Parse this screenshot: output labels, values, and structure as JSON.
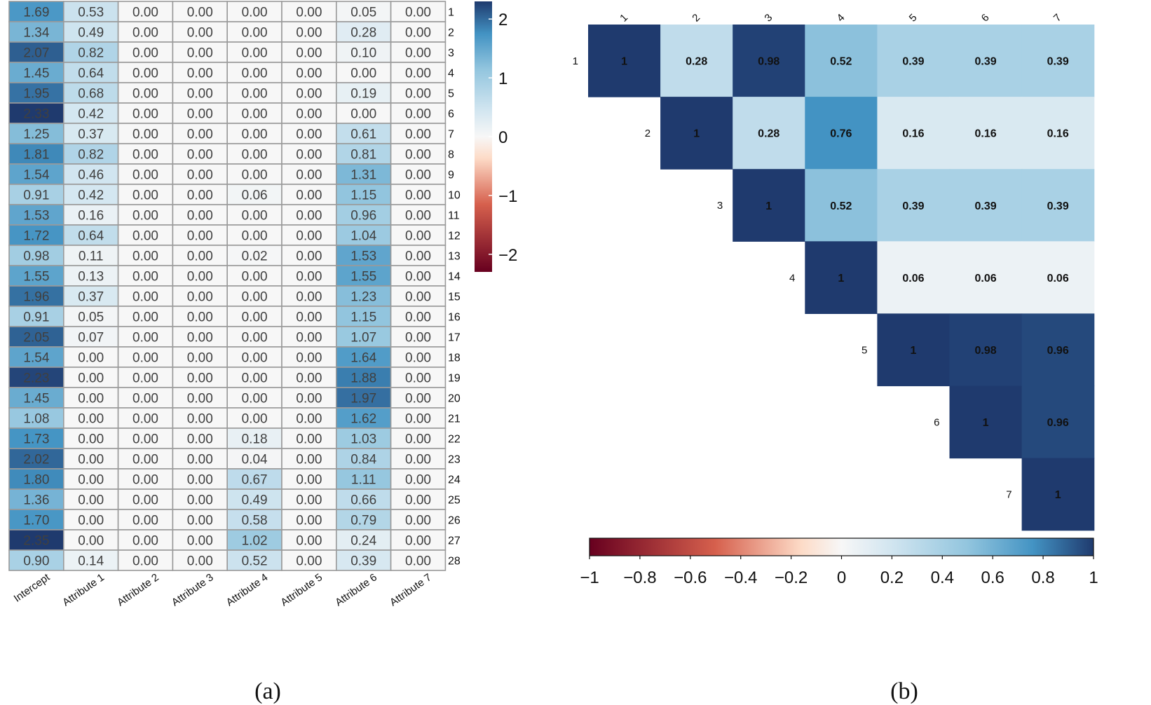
{
  "chart_data": [
    {
      "type": "heatmap",
      "panel_label": "(a)",
      "columns": [
        "Intercept",
        "Attribute 1",
        "Attribute 2",
        "Attribute 3",
        "Attribute 4",
        "Attribute 5",
        "Attribute 6",
        "Attribute 7"
      ],
      "rows": [
        "1",
        "2",
        "3",
        "4",
        "5",
        "6",
        "7",
        "8",
        "9",
        "10",
        "11",
        "12",
        "13",
        "14",
        "15",
        "16",
        "17",
        "18",
        "19",
        "20",
        "21",
        "22",
        "23",
        "24",
        "25",
        "26",
        "27",
        "28"
      ],
      "values": [
        [
          "1.69",
          "0.53",
          "0.00",
          "0.00",
          "0.00",
          "0.00",
          "0.05",
          "0.00"
        ],
        [
          "1.34",
          "0.49",
          "0.00",
          "0.00",
          "0.00",
          "0.00",
          "0.28",
          "0.00"
        ],
        [
          "2.07",
          "0.82",
          "0.00",
          "0.00",
          "0.00",
          "0.00",
          "0.10",
          "0.00"
        ],
        [
          "1.45",
          "0.64",
          "0.00",
          "0.00",
          "0.00",
          "0.00",
          "0.00",
          "0.00"
        ],
        [
          "1.95",
          "0.68",
          "0.00",
          "0.00",
          "0.00",
          "0.00",
          "0.19",
          "0.00"
        ],
        [
          "2.33",
          "0.42",
          "0.00",
          "0.00",
          "0.00",
          "0.00",
          "0.00",
          "0.00"
        ],
        [
          "1.25",
          "0.37",
          "0.00",
          "0.00",
          "0.00",
          "0.00",
          "0.61",
          "0.00"
        ],
        [
          "1.81",
          "0.82",
          "0.00",
          "0.00",
          "0.00",
          "0.00",
          "0.81",
          "0.00"
        ],
        [
          "1.54",
          "0.46",
          "0.00",
          "0.00",
          "0.00",
          "0.00",
          "1.31",
          "0.00"
        ],
        [
          "0.91",
          "0.42",
          "0.00",
          "0.00",
          "0.06",
          "0.00",
          "1.15",
          "0.00"
        ],
        [
          "1.53",
          "0.16",
          "0.00",
          "0.00",
          "0.00",
          "0.00",
          "0.96",
          "0.00"
        ],
        [
          "1.72",
          "0.64",
          "0.00",
          "0.00",
          "0.00",
          "0.00",
          "1.04",
          "0.00"
        ],
        [
          "0.98",
          "0.11",
          "0.00",
          "0.00",
          "0.02",
          "0.00",
          "1.53",
          "0.00"
        ],
        [
          "1.55",
          "0.13",
          "0.00",
          "0.00",
          "0.00",
          "0.00",
          "1.55",
          "0.00"
        ],
        [
          "1.96",
          "0.37",
          "0.00",
          "0.00",
          "0.00",
          "0.00",
          "1.23",
          "0.00"
        ],
        [
          "0.91",
          "0.05",
          "0.00",
          "0.00",
          "0.00",
          "0.00",
          "1.15",
          "0.00"
        ],
        [
          "2.05",
          "0.07",
          "0.00",
          "0.00",
          "0.00",
          "0.00",
          "1.07",
          "0.00"
        ],
        [
          "1.54",
          "0.00",
          "0.00",
          "0.00",
          "0.00",
          "0.00",
          "1.64",
          "0.00"
        ],
        [
          "2.23",
          "0.00",
          "0.00",
          "0.00",
          "0.00",
          "0.00",
          "1.88",
          "0.00"
        ],
        [
          "1.45",
          "0.00",
          "0.00",
          "0.00",
          "0.00",
          "0.00",
          "1.97",
          "0.00"
        ],
        [
          "1.08",
          "0.00",
          "0.00",
          "0.00",
          "0.00",
          "0.00",
          "1.62",
          "0.00"
        ],
        [
          "1.73",
          "0.00",
          "0.00",
          "0.00",
          "0.18",
          "0.00",
          "1.03",
          "0.00"
        ],
        [
          "2.02",
          "0.00",
          "0.00",
          "0.00",
          "0.04",
          "0.00",
          "0.84",
          "0.00"
        ],
        [
          "1.80",
          "0.00",
          "0.00",
          "0.00",
          "0.67",
          "0.00",
          "1.11",
          "0.00"
        ],
        [
          "1.36",
          "0.00",
          "0.00",
          "0.00",
          "0.49",
          "0.00",
          "0.66",
          "0.00"
        ],
        [
          "1.70",
          "0.00",
          "0.00",
          "0.00",
          "0.58",
          "0.00",
          "0.79",
          "0.00"
        ],
        [
          "2.35",
          "0.00",
          "0.00",
          "0.00",
          "1.02",
          "0.00",
          "0.24",
          "0.00"
        ],
        [
          "0.90",
          "0.14",
          "0.00",
          "0.00",
          "0.52",
          "0.00",
          "0.39",
          "0.00"
        ]
      ],
      "colorbar": {
        "range": [
          -2.3,
          2.3
        ],
        "ticks": [
          2,
          1,
          0,
          -1,
          -2
        ],
        "tick_labels": [
          "2",
          "1",
          "0",
          "−1",
          "−2"
        ],
        "orientation": "vertical",
        "position": "right"
      },
      "colors": {
        "negative": "#67001f",
        "neutral": "#f7f7f7",
        "positive": "#1f3a6e"
      }
    },
    {
      "type": "heatmap",
      "subtype": "correlation-upper-triangle",
      "panel_label": "(b)",
      "labels": [
        "1",
        "2",
        "3",
        "4",
        "5",
        "6",
        "7"
      ],
      "matrix": [
        [
          "1",
          "0.28",
          "0.98",
          "0.52",
          "0.39",
          "0.39",
          "0.39"
        ],
        [
          null,
          "1",
          "0.28",
          "0.76",
          "0.16",
          "0.16",
          "0.16"
        ],
        [
          null,
          null,
          "1",
          "0.52",
          "0.39",
          "0.39",
          "0.39"
        ],
        [
          null,
          null,
          null,
          "1",
          "0.06",
          "0.06",
          "0.06"
        ],
        [
          null,
          null,
          null,
          null,
          "1",
          "0.98",
          "0.96"
        ],
        [
          null,
          null,
          null,
          null,
          null,
          "1",
          "0.96"
        ],
        [
          null,
          null,
          null,
          null,
          null,
          null,
          "1"
        ]
      ],
      "colorbar": {
        "range": [
          -1,
          1
        ],
        "ticks": [
          -1,
          -0.8,
          -0.6,
          -0.4,
          -0.2,
          0,
          0.2,
          0.4,
          0.6,
          0.8,
          1
        ],
        "tick_labels": [
          "−1",
          "−0.8",
          "−0.6",
          "−0.4",
          "−0.2",
          "0",
          "0.2",
          "0.4",
          "0.6",
          "0.8",
          "1"
        ],
        "orientation": "horizontal",
        "position": "bottom"
      },
      "colors": {
        "negative": "#67001f",
        "neutral": "#f7f7f7",
        "positive": "#1f3a6e"
      }
    }
  ]
}
